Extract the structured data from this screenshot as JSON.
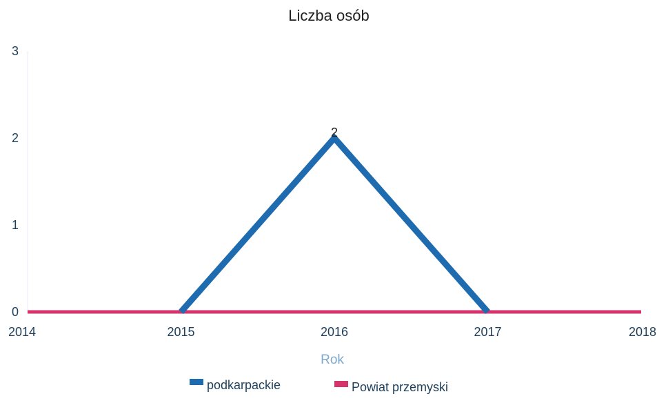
{
  "chart_data": {
    "type": "line",
    "title": "Liczba osób",
    "xlabel": "Rok",
    "ylabel": "",
    "x": [
      2014,
      2015,
      2016,
      2017,
      2018
    ],
    "x_ticks": [
      "2014",
      "2015",
      "2016",
      "2017",
      "2018"
    ],
    "y_ticks": [
      "0",
      "1",
      "2",
      "3"
    ],
    "xlim": [
      2014,
      2018
    ],
    "ylim": [
      0,
      3
    ],
    "grid": false,
    "legend_position": "bottom",
    "series": [
      {
        "name": "podkarpackie",
        "color": "#1f6bb0",
        "points": [
          [
            2015,
            0
          ],
          [
            2016,
            2
          ],
          [
            2017,
            0
          ]
        ],
        "data_labels": [
          {
            "x": 2016,
            "y": 2,
            "text": "2"
          }
        ]
      },
      {
        "name": "Powiat przemyski",
        "color": "#d6336c",
        "points": [
          [
            2014,
            0
          ],
          [
            2015,
            0
          ],
          [
            2016,
            0
          ],
          [
            2017,
            0
          ],
          [
            2018,
            0
          ]
        ],
        "data_labels": []
      }
    ]
  }
}
